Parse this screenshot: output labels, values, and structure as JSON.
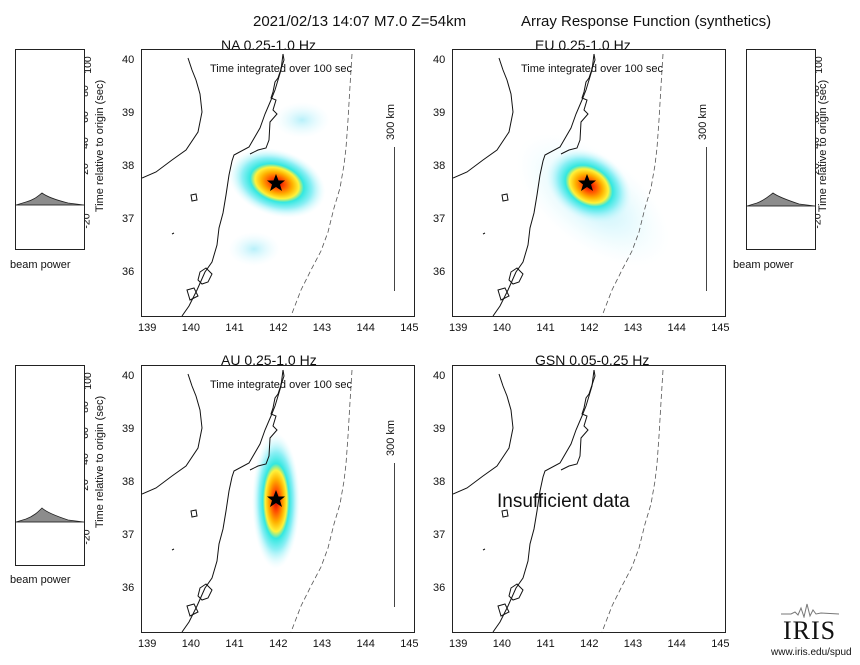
{
  "header": {
    "event": "2021/02/13 14:07  M7.0  Z=54km",
    "title": "Array Response Function (synthetics)"
  },
  "panels": [
    {
      "title": "NA  0.25-1.0 Hz",
      "subtitle": "Time integrated over 100 sec",
      "scale": "300 km"
    },
    {
      "title": "EU  0.25-1.0 Hz",
      "subtitle": "Time integrated over 100 sec",
      "scale": "300 km"
    },
    {
      "title": "AU  0.25-1.0 Hz",
      "subtitle": "Time integrated over 100 sec",
      "scale": "300 km"
    },
    {
      "title": "GSN  0.05-0.25 Hz",
      "message": "Insufficient data"
    }
  ],
  "axes": {
    "lat_ticks": [
      "40",
      "39",
      "38",
      "37",
      "36"
    ],
    "lon_ticks": [
      "139",
      "140",
      "141",
      "142",
      "143",
      "144",
      "145"
    ],
    "beam_ticks": [
      "100",
      "80",
      "60",
      "40",
      "20",
      "0",
      "-20"
    ],
    "beam_axis_label": "Time relative to origin (sec)",
    "beam_caption": "beam power"
  },
  "logo": {
    "text": "IRIS",
    "url": "www.iris.edu/spud"
  },
  "colors": {
    "background": "#ffffff",
    "heat_peak": "#d40000",
    "heat_edge": "#b8f0ff",
    "beam_fill": "#8c8c8c"
  }
}
